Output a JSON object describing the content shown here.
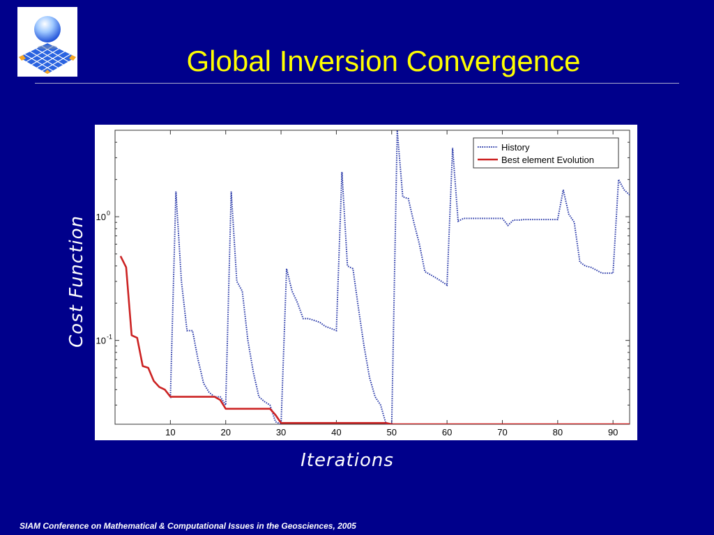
{
  "slide": {
    "title": "Global Inversion Convergence",
    "footer": "SIAM Conference on Mathematical & Computational Issues in the Geosciences, 2005"
  },
  "colors": {
    "background": "#00008b",
    "title": "#ffff00",
    "history": "#2838a8",
    "best": "#cc2222"
  },
  "chart_data": {
    "type": "line",
    "xlabel": "Iterations",
    "ylabel": "Cost Function",
    "xscale": "linear",
    "yscale": "log",
    "xlim": [
      0,
      93
    ],
    "ylim": [
      0.021,
      5
    ],
    "xticks": [
      10,
      20,
      30,
      40,
      50,
      60,
      70,
      80,
      90
    ],
    "yticks": [
      {
        "value": 0.1,
        "base": "10",
        "exp": "-1"
      },
      {
        "value": 1,
        "base": "10",
        "exp": "0"
      }
    ],
    "grid": false,
    "legend_position": "top-right",
    "series": [
      {
        "name": "History",
        "style": "dotted",
        "color": "#2838a8",
        "x": [
          1,
          2,
          3,
          4,
          5,
          6,
          7,
          8,
          9,
          10,
          11,
          12,
          13,
          14,
          15,
          16,
          17,
          18,
          19,
          20,
          21,
          22,
          23,
          24,
          25,
          26,
          27,
          28,
          29,
          30,
          31,
          32,
          33,
          34,
          35,
          36,
          37,
          38,
          39,
          40,
          41,
          42,
          43,
          44,
          45,
          46,
          47,
          48,
          49,
          50,
          51,
          52,
          53,
          54,
          55,
          56,
          57,
          58,
          59,
          60,
          61,
          62,
          63,
          64,
          65,
          66,
          67,
          68,
          69,
          70,
          71,
          72,
          73,
          74,
          75,
          76,
          77,
          78,
          79,
          80,
          81,
          82,
          83,
          84,
          85,
          86,
          87,
          88,
          89,
          90,
          91,
          92,
          93
        ],
        "y": [
          0.48,
          0.39,
          0.11,
          0.105,
          0.062,
          0.06,
          0.047,
          0.042,
          0.04,
          0.035,
          1.6,
          0.3,
          0.12,
          0.12,
          0.07,
          0.045,
          0.038,
          0.035,
          0.035,
          0.03,
          1.6,
          0.3,
          0.25,
          0.1,
          0.055,
          0.035,
          0.032,
          0.03,
          0.022,
          0.021,
          0.38,
          0.25,
          0.2,
          0.15,
          0.15,
          0.145,
          0.14,
          0.13,
          0.125,
          0.12,
          2.3,
          0.4,
          0.38,
          0.18,
          0.09,
          0.05,
          0.035,
          0.03,
          0.021,
          0.021,
          5.0,
          1.45,
          1.4,
          0.9,
          0.6,
          0.36,
          0.34,
          0.32,
          0.3,
          0.28,
          3.6,
          0.92,
          0.97,
          0.97,
          0.97,
          0.97,
          0.97,
          0.97,
          0.97,
          0.97,
          0.85,
          0.94,
          0.94,
          0.95,
          0.95,
          0.95,
          0.95,
          0.95,
          0.95,
          0.95,
          1.65,
          1.05,
          0.9,
          0.43,
          0.4,
          0.39,
          0.37,
          0.35,
          0.35,
          0.35,
          2.0,
          1.65,
          1.5
        ]
      },
      {
        "name": "Best element Evolution",
        "style": "solid",
        "color": "#cc2222",
        "x": [
          1,
          2,
          3,
          4,
          5,
          6,
          7,
          8,
          9,
          10,
          11,
          12,
          13,
          14,
          15,
          16,
          17,
          18,
          19,
          20,
          21,
          22,
          23,
          24,
          25,
          26,
          27,
          28,
          29,
          30,
          31,
          32,
          33,
          34,
          35,
          36,
          37,
          38,
          39,
          40,
          41,
          42,
          43,
          44,
          45,
          46,
          47,
          48,
          49,
          50,
          51,
          52,
          53,
          54,
          55,
          56,
          57,
          58,
          59,
          60,
          61,
          62,
          63,
          64,
          65,
          66,
          67,
          68,
          69,
          70,
          71,
          72,
          73,
          74,
          75,
          76,
          77,
          78,
          79,
          80,
          81,
          82,
          83,
          84,
          85,
          86,
          87,
          88,
          89,
          90,
          91,
          92,
          93
        ],
        "y": [
          0.48,
          0.39,
          0.11,
          0.105,
          0.062,
          0.06,
          0.047,
          0.042,
          0.04,
          0.035,
          0.035,
          0.035,
          0.035,
          0.035,
          0.035,
          0.035,
          0.035,
          0.035,
          0.033,
          0.028,
          0.028,
          0.028,
          0.028,
          0.028,
          0.028,
          0.028,
          0.028,
          0.028,
          0.025,
          0.0215,
          0.0215,
          0.0215,
          0.0215,
          0.0215,
          0.0215,
          0.0215,
          0.0215,
          0.0215,
          0.0215,
          0.0215,
          0.0215,
          0.0215,
          0.0215,
          0.0215,
          0.0215,
          0.0215,
          0.0215,
          0.0215,
          0.0215,
          0.021,
          0.021,
          0.021,
          0.021,
          0.021,
          0.021,
          0.021,
          0.021,
          0.021,
          0.021,
          0.021,
          0.021,
          0.021,
          0.021,
          0.021,
          0.021,
          0.021,
          0.021,
          0.021,
          0.021,
          0.021,
          0.021,
          0.021,
          0.021,
          0.021,
          0.021,
          0.021,
          0.021,
          0.021,
          0.021,
          0.021,
          0.021,
          0.021,
          0.021,
          0.021,
          0.021,
          0.021,
          0.021,
          0.021,
          0.021,
          0.021,
          0.021,
          0.021,
          0.021
        ]
      }
    ]
  }
}
